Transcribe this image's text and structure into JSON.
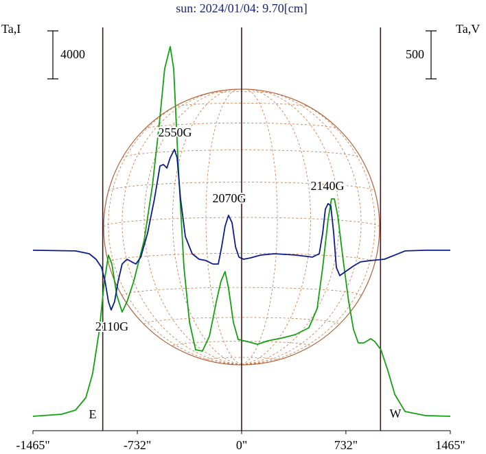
{
  "chart_data": {
    "type": "line",
    "title": "sun: 2024/01/04: 9.70[cm]",
    "y_label": "Ta,I",
    "y2_label": "Ta,V",
    "y_scale_bar": 4000,
    "y2_scale_bar": 500,
    "xlim": [
      -1465,
      1465
    ],
    "xticks": [
      {
        "value": -1465,
        "label": "-1465\""
      },
      {
        "value": -732,
        "label": "-732\""
      },
      {
        "value": 0,
        "label": "0\""
      },
      {
        "value": 732,
        "label": "732\""
      },
      {
        "value": 1465,
        "label": "1465\""
      }
    ],
    "ylim": [
      0,
      33600
    ],
    "y2lim": [
      -1879,
      2321
    ],
    "vlines": [
      -975,
      0,
      975
    ],
    "limb_labels": [
      "E",
      "W"
    ],
    "annotations": [
      "2550G",
      "2070G",
      "2140G",
      "2110G"
    ],
    "series": [
      {
        "color": "#11a011",
        "x": [
          -1465,
          -1263,
          -1166,
          -1094,
          -1046,
          -998,
          -964,
          -935,
          -911,
          -877,
          -839,
          -805,
          -757,
          -684,
          -626,
          -578,
          -540,
          -501,
          -477,
          -443,
          -405,
          -366,
          -323,
          -275,
          -226,
          -178,
          -145,
          -116,
          -92,
          -58,
          -24,
          39,
          111,
          183,
          280,
          376,
          472,
          530,
          569,
          607,
          631,
          651,
          675,
          713,
          752,
          785,
          819,
          858,
          906,
          935,
          978,
          1026,
          1075,
          1147,
          1291,
          1465
        ],
        "values": [
          1200,
          1371,
          1714,
          2743,
          4743,
          8457,
          12457,
          14629,
          13886,
          11314,
          9886,
          10743,
          12457,
          15886,
          20457,
          25600,
          30171,
          32000,
          30171,
          21600,
          13600,
          9029,
          6743,
          6629,
          7886,
          10743,
          12457,
          13257,
          11886,
          9029,
          7600,
          7429,
          7200,
          7486,
          7714,
          8000,
          8571,
          10171,
          13600,
          17600,
          19314,
          19314,
          17886,
          14171,
          10743,
          8457,
          7314,
          7314,
          7657,
          7429,
          6743,
          5029,
          3029,
          1600,
          1257,
          1200
        ]
      },
      {
        "color": "#0a1a8c",
        "axis": "y2",
        "x": [
          -1465,
          -1166,
          -1070,
          -1022,
          -983,
          -959,
          -935,
          -916,
          -892,
          -867,
          -839,
          -805,
          -771,
          -742,
          -708,
          -660,
          -612,
          -573,
          -549,
          -525,
          -501,
          -472,
          -453,
          -429,
          -395,
          -347,
          -299,
          -251,
          -202,
          -164,
          -140,
          -116,
          -92,
          -67,
          -43,
          -19,
          14,
          63,
          135,
          231,
          376,
          496,
          545,
          569,
          588,
          607,
          626,
          646,
          665,
          689,
          737,
          785,
          834,
          906,
          1002,
          1075,
          1147,
          1291,
          1465
        ],
        "values": [
          0,
          -7,
          -36,
          -93,
          -179,
          -321,
          -536,
          -621,
          -536,
          -321,
          -143,
          -93,
          -121,
          -143,
          -71,
          179,
          536,
          879,
          893,
          857,
          964,
          1050,
          964,
          536,
          143,
          -36,
          -93,
          -107,
          -143,
          -143,
          36,
          250,
          364,
          286,
          36,
          -71,
          -93,
          -79,
          -50,
          -36,
          -50,
          -71,
          -36,
          179,
          429,
          486,
          464,
          179,
          -179,
          -264,
          -214,
          -164,
          -121,
          -107,
          -93,
          -50,
          -7,
          0,
          0
        ]
      }
    ]
  }
}
